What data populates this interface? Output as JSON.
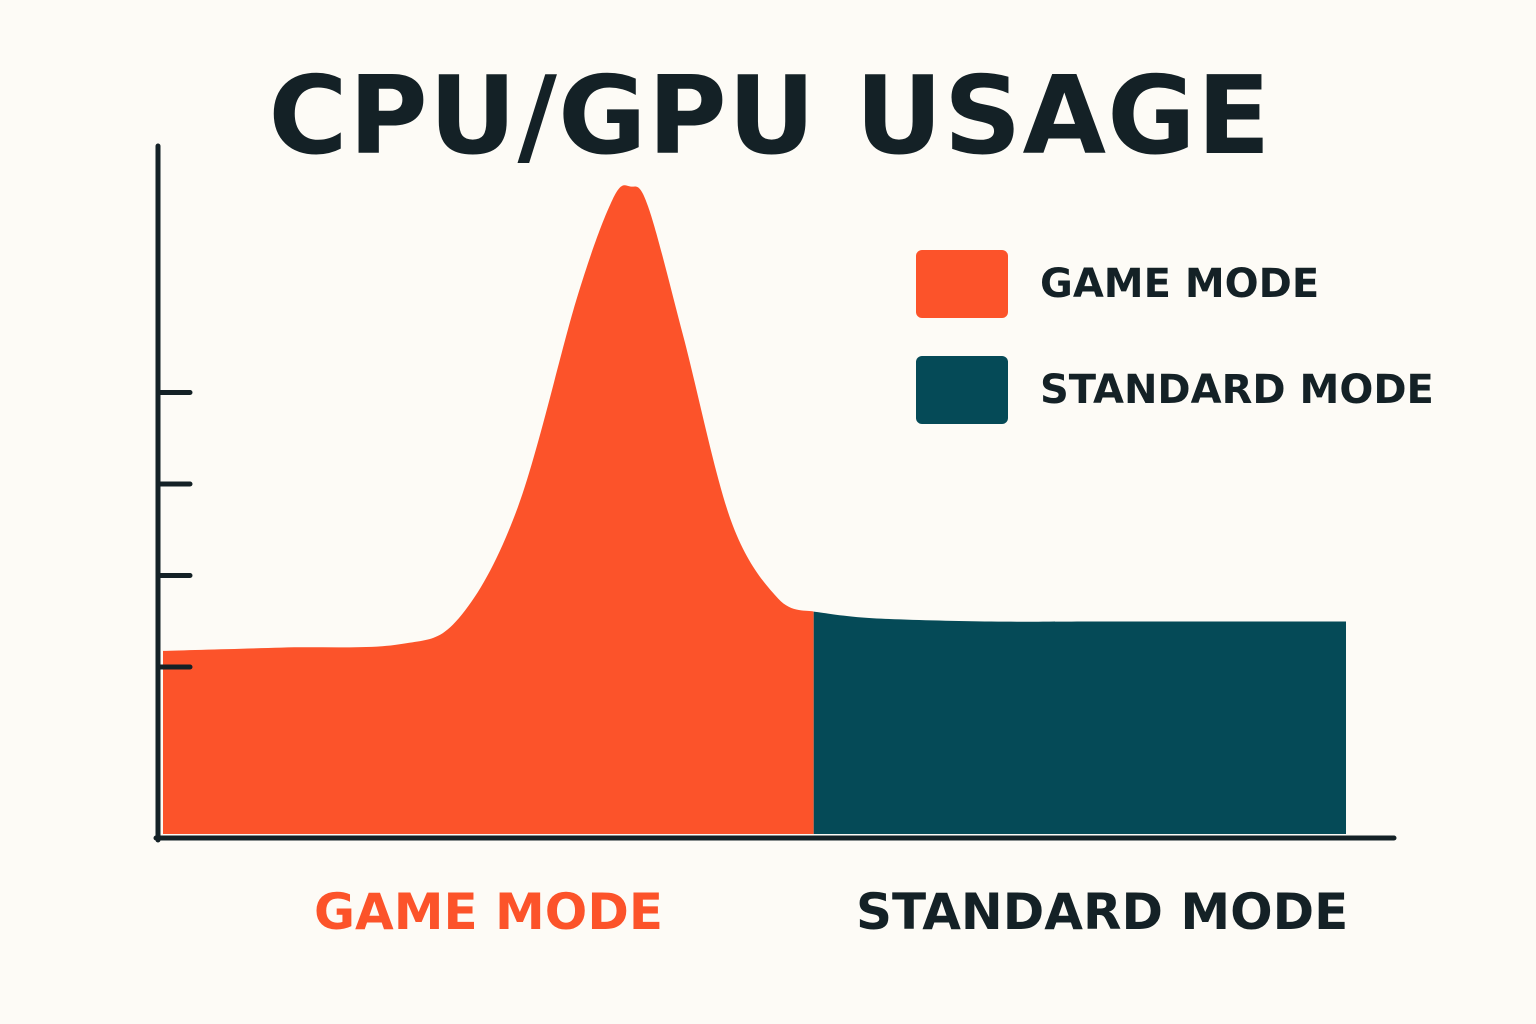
{
  "chart_data": {
    "type": "area",
    "title": "CPU/GPU USAGE",
    "xlabel": "",
    "ylabel": "",
    "categories": [
      "GAME MODE",
      "STANDARD MODE"
    ],
    "y_axis": {
      "tick_count": 4,
      "tick_labels": []
    },
    "series": [
      {
        "name": "GAME MODE",
        "color": "#fc532a",
        "x": [
          0,
          10,
          20,
          25,
          30,
          35,
          38,
          39.5,
          41,
          44,
          48,
          52,
          55
        ],
        "y": [
          28,
          28.5,
          29,
          33,
          50,
          82,
          97,
          99,
          96,
          76,
          48,
          36,
          34
        ]
      },
      {
        "name": "STANDARD MODE",
        "color": "#054a57",
        "x": [
          55,
          60,
          70,
          80,
          100
        ],
        "y": [
          34,
          33,
          32.5,
          32.5,
          32.5
        ]
      }
    ],
    "xlim": [
      0,
      100
    ],
    "ylim": [
      0,
      100
    ],
    "grid": false,
    "legend": "top-right"
  },
  "colors": {
    "background": "#fdfbf6",
    "text": "#142126",
    "game_mode": "#fc532a",
    "standard_mode": "#054a57",
    "axis": "#142126"
  },
  "legend": {
    "items": [
      {
        "label": "GAME MODE",
        "color": "#fc532a"
      },
      {
        "label": "STANDARD MODE",
        "color": "#054a57"
      }
    ]
  },
  "category_labels": {
    "game": {
      "label": "GAME MODE",
      "color": "#fc532a"
    },
    "standard": {
      "label": "STANDARD MODE",
      "color": "#142126"
    }
  }
}
